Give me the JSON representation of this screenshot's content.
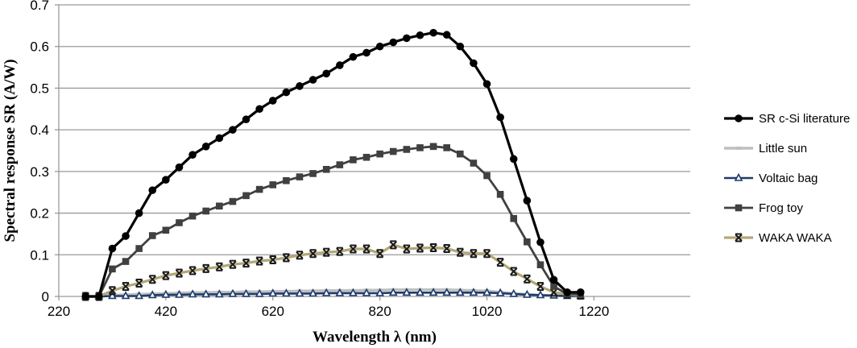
{
  "chart_data": {
    "type": "line",
    "title": "",
    "xlabel": "Wavelength λ (nm)",
    "ylabel": "Spectral response SR (A/W)",
    "xlim": [
      220,
      1400
    ],
    "ylim": [
      0,
      0.7
    ],
    "xticks": [
      220,
      420,
      620,
      820,
      1020,
      1220
    ],
    "yticks": [
      0,
      0.1,
      0.2,
      0.3,
      0.4,
      0.5,
      0.6,
      0.7
    ],
    "ytick_labels": [
      "0",
      "0.1",
      "0.2",
      "0.3",
      "0.4",
      "0.5",
      "0.6",
      "0.7"
    ],
    "grid": "horizontal",
    "legend_position": "right",
    "x": [
      270,
      295,
      320,
      345,
      370,
      395,
      420,
      445,
      470,
      495,
      520,
      545,
      570,
      595,
      620,
      645,
      670,
      695,
      720,
      745,
      770,
      795,
      820,
      845,
      870,
      895,
      920,
      945,
      970,
      995,
      1020,
      1045,
      1070,
      1095,
      1120,
      1145,
      1170,
      1195
    ],
    "series": [
      {
        "name": "SR c-Si literature",
        "color": "#000000",
        "marker": "circle",
        "values": [
          0,
          0,
          0.115,
          0.145,
          0.2,
          0.255,
          0.28,
          0.31,
          0.34,
          0.36,
          0.38,
          0.4,
          0.425,
          0.45,
          0.47,
          0.49,
          0.505,
          0.52,
          0.535,
          0.555,
          0.575,
          0.585,
          0.6,
          0.61,
          0.62,
          0.627,
          0.633,
          0.628,
          0.6,
          0.56,
          0.51,
          0.43,
          0.33,
          0.23,
          0.13,
          0.04,
          0.01,
          0.01
        ]
      },
      {
        "name": "Little sun",
        "color": "#bfbfbf",
        "marker": "dash",
        "values": [
          0,
          0,
          0.003,
          0.004,
          0.005,
          0.006,
          0.007,
          0.008,
          0.009,
          0.009,
          0.01,
          0.01,
          0.011,
          0.011,
          0.012,
          0.012,
          0.013,
          0.013,
          0.014,
          0.014,
          0.014,
          0.015,
          0.015,
          0.016,
          0.016,
          0.016,
          0.016,
          0.016,
          0.015,
          0.014,
          0.013,
          0.01,
          0.007,
          0.005,
          0.003,
          0.002,
          0.001,
          0.001
        ]
      },
      {
        "name": "Voltaic bag",
        "color": "#1f3d6b",
        "marker": "triangle-open",
        "values": [
          0,
          0,
          0.001,
          0.001,
          0.001,
          0.003,
          0.004,
          0.004,
          0.005,
          0.005,
          0.005,
          0.006,
          0.006,
          0.006,
          0.007,
          0.007,
          0.007,
          0.007,
          0.008,
          0.008,
          0.008,
          0.008,
          0.008,
          0.009,
          0.009,
          0.009,
          0.009,
          0.009,
          0.009,
          0.009,
          0.009,
          0.008,
          0.006,
          0.004,
          0.003,
          0.002,
          0.001,
          0.001
        ]
      },
      {
        "name": "Frog toy",
        "color": "#404040",
        "marker": "square",
        "values": [
          0,
          0,
          0.066,
          0.084,
          0.115,
          0.146,
          0.159,
          0.177,
          0.193,
          0.205,
          0.217,
          0.228,
          0.242,
          0.257,
          0.268,
          0.278,
          0.287,
          0.295,
          0.305,
          0.316,
          0.328,
          0.334,
          0.342,
          0.348,
          0.353,
          0.357,
          0.36,
          0.357,
          0.342,
          0.32,
          0.29,
          0.245,
          0.187,
          0.131,
          0.076,
          0.024,
          0.006,
          0.005
        ]
      },
      {
        "name": "WAKA WAKA",
        "color": "#b3a774",
        "marker": "asterisk",
        "values": [
          0,
          0,
          0.014,
          0.024,
          0.032,
          0.041,
          0.05,
          0.056,
          0.062,
          0.067,
          0.071,
          0.077,
          0.08,
          0.085,
          0.088,
          0.093,
          0.099,
          0.103,
          0.106,
          0.108,
          0.114,
          0.114,
          0.103,
          0.124,
          0.114,
          0.116,
          0.117,
          0.115,
          0.106,
          0.103,
          0.103,
          0.082,
          0.06,
          0.042,
          0.024,
          0.01,
          0.005,
          0.003
        ]
      }
    ]
  }
}
